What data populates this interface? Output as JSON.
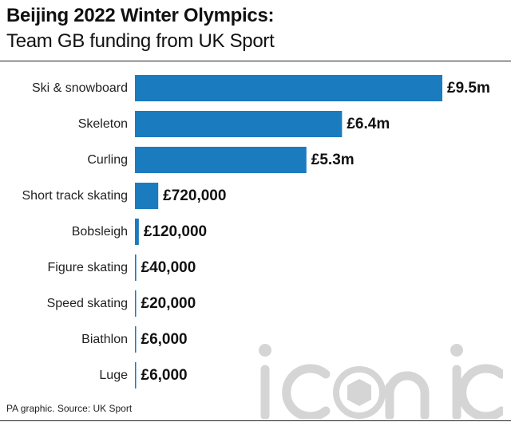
{
  "header": {
    "title": "Beijing 2022 Winter Olympics:",
    "subtitle": "Team GB funding from UK Sport"
  },
  "footer": {
    "source": "PA graphic. Source: UK Sport"
  },
  "watermark": {
    "text": "iconic"
  },
  "colors": {
    "bar": "#1a7bbf",
    "text": "#111111",
    "watermark": "#d5d5d5"
  },
  "chart_data": {
    "type": "bar",
    "orientation": "horizontal",
    "title": "Beijing 2022 Winter Olympics:",
    "subtitle": "Team GB funding from UK Sport",
    "unit": "GBP",
    "categories": [
      "Ski & snowboard",
      "Skeleton",
      "Curling",
      "Short track skating",
      "Bobsleigh",
      "Figure skating",
      "Speed skating",
      "Biathlon",
      "Luge"
    ],
    "values": [
      9500000,
      6400000,
      5300000,
      720000,
      120000,
      40000,
      20000,
      6000,
      6000
    ],
    "labels": [
      "£9.5m",
      "£6.4m",
      "£5.3m",
      "£720,000",
      "£120,000",
      "£40,000",
      "£20,000",
      "£6,000",
      "£6,000"
    ],
    "grid": false,
    "legend": "none"
  }
}
